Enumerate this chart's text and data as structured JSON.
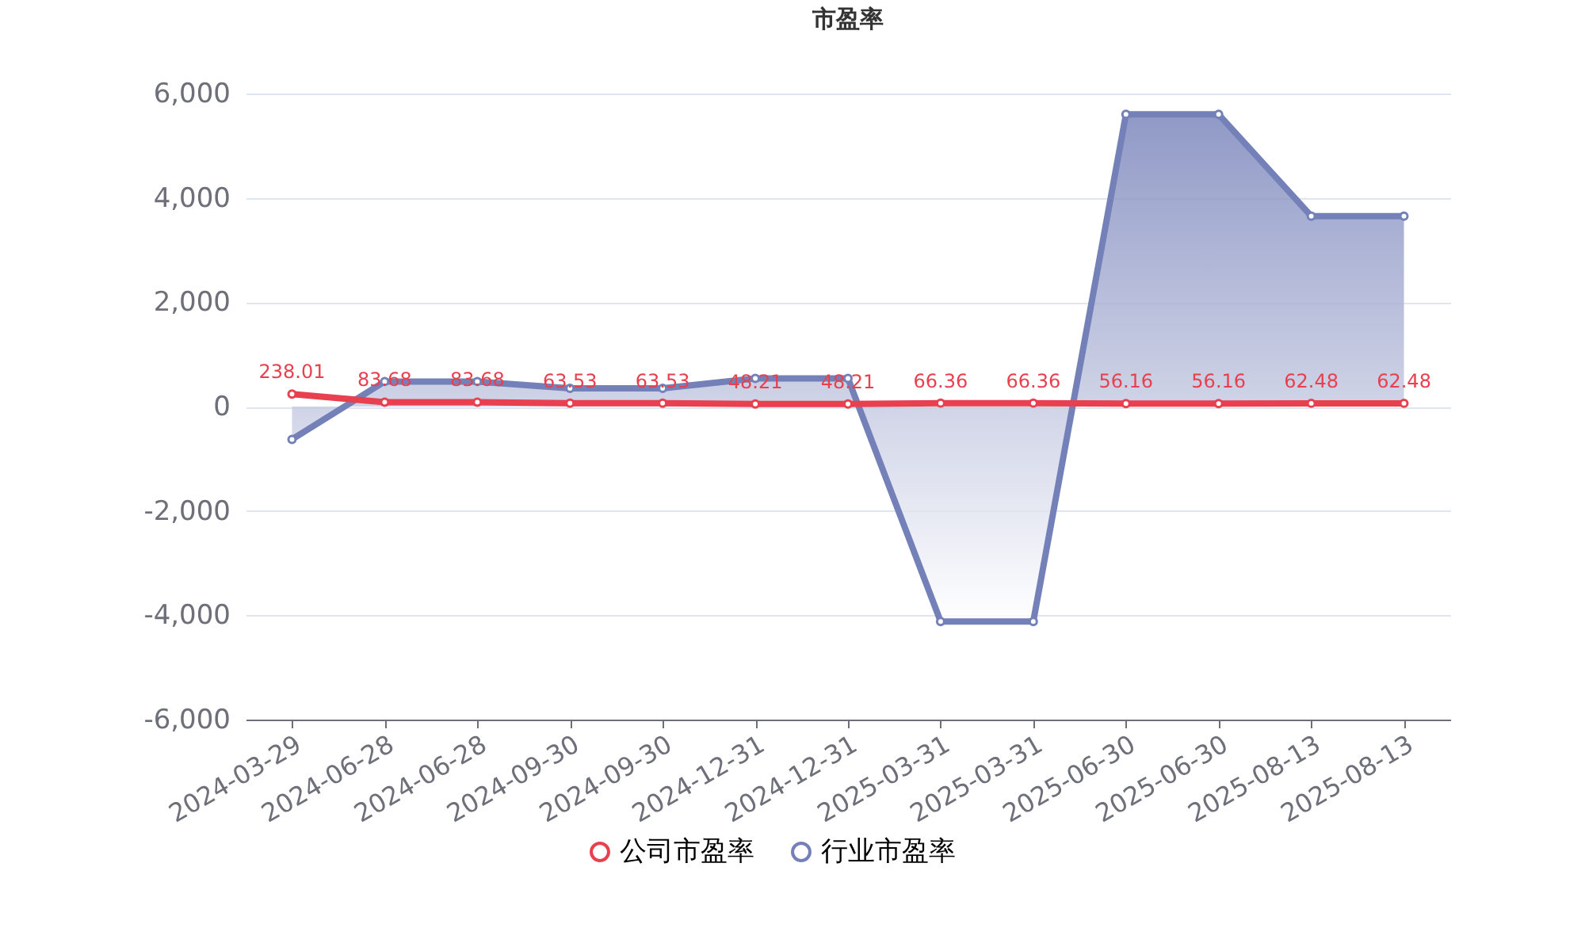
{
  "chart_data": {
    "type": "line",
    "title": "市盈率",
    "categories": [
      "2024-03-29",
      "2024-06-28",
      "2024-06-28",
      "2024-09-30",
      "2024-09-30",
      "2024-12-31",
      "2024-12-31",
      "2025-03-31",
      "2025-03-31",
      "2025-06-30",
      "2025-06-30",
      "2025-08-13",
      "2025-08-13"
    ],
    "series": [
      {
        "name": "公司市盈率",
        "type": "line",
        "color": "#e8404f",
        "values": [
          238.01,
          83.68,
          83.68,
          63.53,
          63.53,
          48.21,
          48.21,
          66.36,
          66.36,
          56.16,
          56.16,
          62.48,
          62.48
        ],
        "value_labels": [
          "238.01",
          "83.68",
          "83.68",
          "63.53",
          "63.53",
          "48.21",
          "48.21",
          "66.36",
          "66.36",
          "56.16",
          "56.16",
          "62.48",
          "62.48"
        ]
      },
      {
        "name": "行业市盈率",
        "type": "area",
        "color": "#7480b8",
        "values": [
          -630,
          480,
          480,
          350,
          350,
          540,
          540,
          -4120,
          -4120,
          5600,
          5600,
          3650,
          3650
        ]
      }
    ],
    "ylim": [
      -6000,
      6000
    ],
    "yticks": [
      {
        "value": -6000,
        "label": "-6,000"
      },
      {
        "value": -4000,
        "label": "-4,000"
      },
      {
        "value": -2000,
        "label": "-2,000"
      },
      0,
      {
        "value": 2000,
        "label": "2,000"
      },
      {
        "value": 4000,
        "label": "4,000"
      },
      {
        "value": 6000,
        "label": "6,000"
      }
    ],
    "grid": "y",
    "legend": "bottom",
    "marker": "circle",
    "line_style": "solid"
  }
}
